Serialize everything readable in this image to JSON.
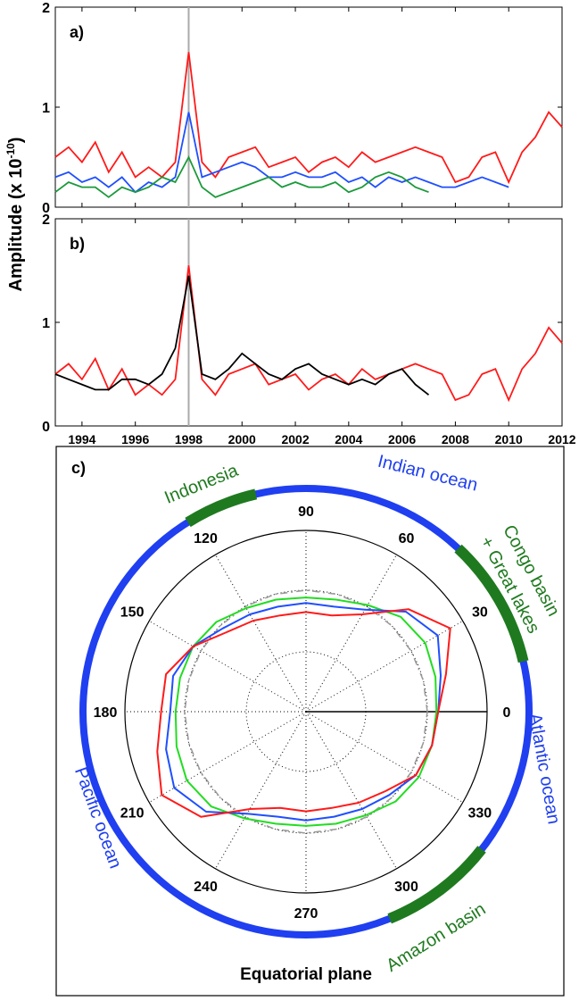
{
  "chart_data": [
    {
      "type": "line",
      "label": "a)",
      "ylabel": "Amplitude (x 10",
      "ylabel_exp": "-10",
      "ylabel_end": ")",
      "xlim": [
        1993,
        2012
      ],
      "ylim": [
        0,
        2
      ],
      "yticks": [
        0,
        1,
        2
      ],
      "xticks": [
        1994,
        1996,
        1998,
        2000,
        2002,
        2004,
        2006,
        2008,
        2010,
        2012
      ],
      "show_xtick_labels": false,
      "vline": 1998,
      "x": [
        1993,
        1993.5,
        1994,
        1994.5,
        1995,
        1995.5,
        1996,
        1996.5,
        1997,
        1997.5,
        1998,
        1998.5,
        1999,
        1999.5,
        2000,
        2000.5,
        2001,
        2001.5,
        2002,
        2002.5,
        2003,
        2003.5,
        2004,
        2004.5,
        2005,
        2005.5,
        2006,
        2006.5,
        2007,
        2007.5,
        2008,
        2008.5,
        2009,
        2009.5,
        2010,
        2010.5,
        2011,
        2011.5,
        2012
      ],
      "series": [
        {
          "color": "#ff1a1a",
          "values": [
            0.5,
            0.6,
            0.45,
            0.65,
            0.35,
            0.55,
            0.3,
            0.4,
            0.3,
            0.45,
            1.55,
            0.45,
            0.3,
            0.5,
            0.55,
            0.6,
            0.4,
            0.45,
            0.5,
            0.35,
            0.45,
            0.5,
            0.4,
            0.55,
            0.45,
            0.5,
            0.55,
            0.6,
            0.55,
            0.5,
            0.25,
            0.3,
            0.5,
            0.55,
            0.25,
            0.55,
            0.7,
            0.95,
            0.8
          ]
        },
        {
          "color": "#1f4fff",
          "values": [
            0.3,
            0.35,
            0.25,
            0.3,
            0.2,
            0.3,
            0.15,
            0.25,
            0.2,
            0.3,
            0.95,
            0.3,
            0.35,
            0.4,
            0.45,
            0.4,
            0.3,
            0.3,
            0.35,
            0.3,
            0.3,
            0.35,
            0.25,
            0.3,
            0.2,
            0.3,
            0.25,
            0.3,
            0.25,
            0.2,
            0.2,
            0.25,
            0.3,
            0.25,
            0.2,
            null,
            null,
            null,
            null
          ]
        },
        {
          "color": "#1a9a3a",
          "values": [
            0.15,
            0.25,
            0.2,
            0.2,
            0.1,
            0.2,
            0.15,
            0.2,
            0.3,
            0.25,
            0.5,
            0.2,
            0.1,
            0.15,
            0.2,
            0.25,
            0.3,
            0.2,
            0.25,
            0.2,
            0.2,
            0.25,
            0.15,
            0.2,
            0.3,
            0.35,
            0.3,
            0.2,
            0.15,
            null,
            null,
            null,
            null,
            null,
            null,
            null,
            null,
            null,
            null
          ]
        }
      ]
    },
    {
      "type": "line",
      "label": "b)",
      "xlim": [
        1993,
        2012
      ],
      "ylim": [
        0,
        2
      ],
      "yticks": [
        0,
        1,
        2
      ],
      "xticks": [
        1994,
        1996,
        1998,
        2000,
        2002,
        2004,
        2006,
        2008,
        2010,
        2012
      ],
      "show_xtick_labels": true,
      "vline": 1998,
      "x": [
        1993,
        1993.5,
        1994,
        1994.5,
        1995,
        1995.5,
        1996,
        1996.5,
        1997,
        1997.5,
        1998,
        1998.5,
        1999,
        1999.5,
        2000,
        2000.5,
        2001,
        2001.5,
        2002,
        2002.5,
        2003,
        2003.5,
        2004,
        2004.5,
        2005,
        2005.5,
        2006,
        2006.5,
        2007,
        2007.5,
        2008,
        2008.5,
        2009,
        2009.5,
        2010,
        2010.5,
        2011,
        2011.5,
        2012
      ],
      "series": [
        {
          "color": "#ff1a1a",
          "values": [
            0.5,
            0.6,
            0.45,
            0.65,
            0.35,
            0.55,
            0.3,
            0.4,
            0.3,
            0.45,
            1.55,
            0.45,
            0.3,
            0.5,
            0.55,
            0.6,
            0.4,
            0.45,
            0.5,
            0.35,
            0.45,
            0.5,
            0.4,
            0.55,
            0.45,
            0.5,
            0.55,
            0.6,
            0.55,
            0.5,
            0.25,
            0.3,
            0.5,
            0.55,
            0.25,
            0.55,
            0.7,
            0.95,
            0.8
          ]
        },
        {
          "color": "#000000",
          "values": [
            0.5,
            0.45,
            0.4,
            0.35,
            0.35,
            0.45,
            0.45,
            0.4,
            0.5,
            0.75,
            1.45,
            0.5,
            0.45,
            0.55,
            0.7,
            0.6,
            0.5,
            0.45,
            0.55,
            0.6,
            0.5,
            0.45,
            0.4,
            0.45,
            0.4,
            0.5,
            0.55,
            0.4,
            0.3,
            null,
            null,
            null,
            null,
            null,
            null,
            null,
            null,
            null,
            null
          ]
        }
      ]
    },
    {
      "type": "polar",
      "label": "c)",
      "title": "Equatorial plane",
      "rlim": [
        0,
        1
      ],
      "rticks": [
        0.33,
        0.67,
        1
      ],
      "angle_ticks": [
        0,
        30,
        60,
        90,
        120,
        150,
        180,
        210,
        240,
        270,
        300,
        330
      ],
      "angles": [
        0,
        15,
        30,
        45,
        60,
        75,
        90,
        105,
        120,
        135,
        150,
        165,
        180,
        195,
        210,
        225,
        240,
        255,
        270,
        285,
        300,
        315,
        330,
        345,
        360
      ],
      "series": [
        {
          "color": "#999999",
          "dashed": true,
          "values": [
            0.67,
            0.67,
            0.67,
            0.67,
            0.67,
            0.67,
            0.67,
            0.67,
            0.67,
            0.67,
            0.67,
            0.67,
            0.67,
            0.67,
            0.67,
            0.67,
            0.67,
            0.67,
            0.67,
            0.67,
            0.67,
            0.67,
            0.67,
            0.67,
            0.67
          ]
        },
        {
          "color": "#22dd22",
          "values": [
            0.72,
            0.74,
            0.76,
            0.74,
            0.68,
            0.64,
            0.63,
            0.64,
            0.66,
            0.7,
            0.72,
            0.72,
            0.72,
            0.74,
            0.76,
            0.74,
            0.68,
            0.64,
            0.63,
            0.64,
            0.66,
            0.7,
            0.72,
            0.72,
            0.72
          ]
        },
        {
          "color": "#1f4fff",
          "values": [
            0.73,
            0.77,
            0.84,
            0.78,
            0.65,
            0.6,
            0.6,
            0.6,
            0.62,
            0.65,
            0.72,
            0.76,
            0.75,
            0.8,
            0.84,
            0.78,
            0.65,
            0.6,
            0.6,
            0.6,
            0.62,
            0.65,
            0.7,
            0.72,
            0.73
          ]
        },
        {
          "color": "#ff1a1a",
          "values": [
            0.73,
            0.8,
            0.92,
            0.8,
            0.62,
            0.55,
            0.55,
            0.55,
            0.58,
            0.62,
            0.72,
            0.8,
            0.8,
            0.85,
            0.92,
            0.82,
            0.62,
            0.55,
            0.55,
            0.55,
            0.58,
            0.62,
            0.7,
            0.72,
            0.73
          ]
        }
      ],
      "ring_color": "#1f3ff0",
      "regions": [
        {
          "label": "Indonesia",
          "start": 103,
          "end": 122,
          "color": "#1f7a1f"
        },
        {
          "label": "Congo basin",
          "label2": "+ Great lakes",
          "start": 13,
          "end": 47,
          "color": "#1f7a1f"
        },
        {
          "label": "Amazon basin",
          "start": 292,
          "end": 322,
          "color": "#1f7a1f"
        }
      ],
      "ocean_labels": [
        {
          "label": "Indian ocean",
          "color": "#1f3ff0"
        },
        {
          "label": "Atlantic ocean",
          "color": "#1f3ff0"
        },
        {
          "label": "Pacific ocean",
          "color": "#1f3ff0"
        }
      ]
    }
  ]
}
